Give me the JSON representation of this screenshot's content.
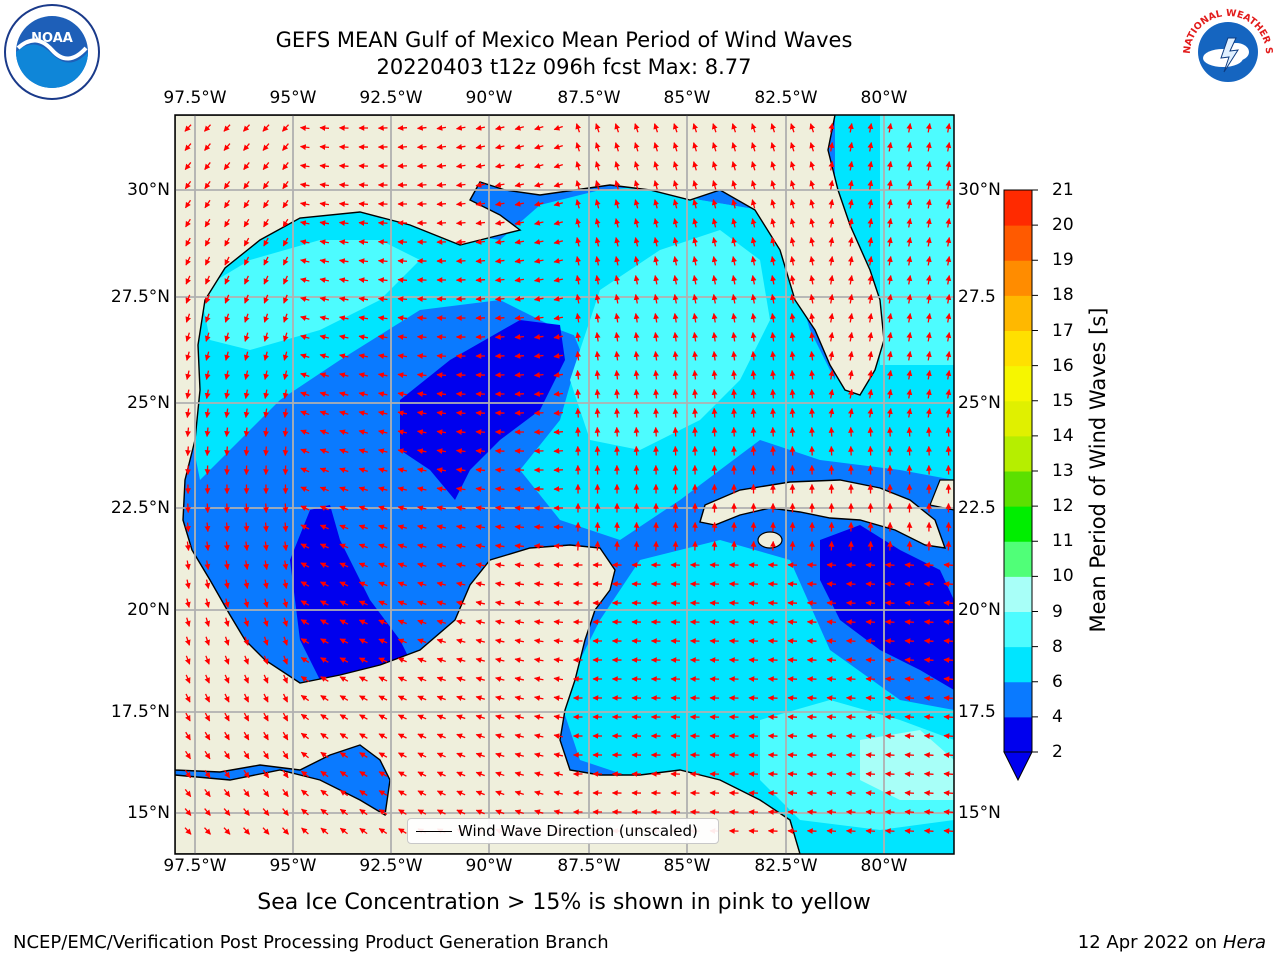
{
  "header": {
    "title_line1": "GEFS MEAN Gulf of Mexico Mean Period of Wind Waves",
    "title_line2": "20220403 t12z 096h fcst   Max: 8.77"
  },
  "logos": {
    "noaa": "NOAA",
    "nws": "NATIONAL WEATHER SERVICE"
  },
  "map": {
    "lon_ticks": [
      "97.5°W",
      "95°W",
      "92.5°W",
      "90°W",
      "87.5°W",
      "85°W",
      "82.5°W",
      "80°W"
    ],
    "lat_ticks_left": [
      "30°N",
      "27.5°N",
      "25°N",
      "22.5°N",
      "20°N",
      "17.5°N",
      "15°N"
    ],
    "lat_ticks_right": [
      "30°N",
      "27.5",
      "25°N",
      "22.5",
      "20°N",
      "17.5",
      "15°N"
    ],
    "land_color": "#efefdc",
    "arrow_color": "#ff0000"
  },
  "legend": {
    "label": "Wind Wave Direction (unscaled)"
  },
  "colorbar": {
    "label": "Mean Period of Wind Waves [s]",
    "ticks": [
      "2",
      "4",
      "6",
      "8",
      "9",
      "10",
      "11",
      "12",
      "13",
      "14",
      "15",
      "16",
      "17",
      "18",
      "19",
      "20",
      "21"
    ],
    "colors": [
      "#0000ee",
      "#0a7aff",
      "#00e5ff",
      "#4dfcff",
      "#a8fff8",
      "#50ff78",
      "#00ee00",
      "#5ce000",
      "#b6ee00",
      "#e0f000",
      "#f6f600",
      "#ffe000",
      "#ffb800",
      "#ff8c00",
      "#ff5a00",
      "#ff2a00",
      "#ff0000"
    ]
  },
  "note": "Sea Ice Concentration > 15% is shown in pink to yellow",
  "footer": {
    "left": "NCEP/EMC/Verification Post Processing Product Generation Branch",
    "right_prefix": "12 Apr 2022 on",
    "right_host": "Hera"
  }
}
